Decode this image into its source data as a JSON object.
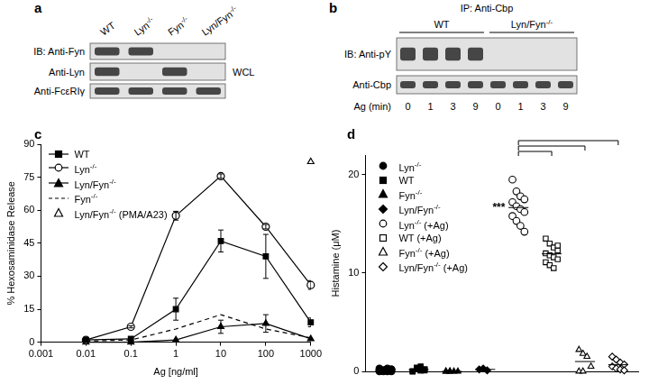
{
  "panel_a": {
    "label": "a",
    "columns": [
      "WT",
      "Lyn-/-",
      "Fyn-/-",
      "Lyn/Fyn-/-"
    ],
    "rows": [
      {
        "label": "IB: Anti-Fyn",
        "bands": [
          1,
          1,
          0,
          0
        ]
      },
      {
        "label": "Anti-Lyn",
        "bands": [
          1,
          0,
          1,
          0
        ]
      },
      {
        "label": "Anti-FcεRIγ",
        "bands": [
          1,
          1,
          1,
          1
        ]
      }
    ],
    "side_label": "WCL"
  },
  "panel_b": {
    "label": "b",
    "title": "IP: Anti-Cbp",
    "groups": [
      {
        "name": "WT",
        "lanes": [
          0,
          1,
          3,
          9
        ]
      },
      {
        "name": "Lyn/Fyn-/-",
        "lanes": [
          0,
          1,
          3,
          9
        ]
      }
    ],
    "lane_axis_label": "Ag (min)",
    "rows": [
      {
        "label": "IB: Anti-pY",
        "bands": [
          1,
          1,
          1,
          1,
          0,
          0,
          0,
          0
        ]
      },
      {
        "label": "Anti-Cbp",
        "bands": [
          1,
          1,
          1,
          1,
          1,
          1,
          1,
          1
        ]
      }
    ]
  },
  "chart_data": [
    {
      "label": "c",
      "type": "line",
      "x_label": "Ag [ng/ml]",
      "y_label": "% Hexosaminidase Release",
      "log": "x",
      "xlim": [
        0.001,
        1000
      ],
      "xticks": [
        0.001,
        0.01,
        0.1,
        1,
        10,
        100,
        1000
      ],
      "ylim": [
        0,
        90
      ],
      "yticks": [
        0,
        15,
        30,
        45,
        60,
        75,
        90
      ],
      "grid": false,
      "legend": "upper left",
      "series": [
        {
          "name": "WT",
          "color": "#000000",
          "marker": "square",
          "line_style": "solid",
          "x": [
            0.01,
            0.1,
            1,
            10,
            100,
            1000
          ],
          "values": [
            1,
            1.5,
            15,
            46,
            39,
            9
          ],
          "errors": [
            0,
            0.5,
            5,
            5,
            10,
            2
          ]
        },
        {
          "name": "Lyn-/-",
          "color": "#000000",
          "marker": "open_circle",
          "line_style": "solid",
          "x": [
            0.01,
            0.1,
            1,
            10,
            100,
            1000
          ],
          "values": [
            1,
            7,
            57.5,
            75.5,
            52.5,
            26
          ],
          "errors": [
            0,
            0.5,
            2,
            1,
            1,
            2
          ]
        },
        {
          "name": "Lyn/Fyn-/-",
          "color": "#000000",
          "marker": "triangle",
          "line_style": "solid",
          "x": [
            0.01,
            0.1,
            1,
            10,
            100,
            1000
          ],
          "values": [
            0,
            0,
            1,
            7,
            8.5,
            1.5
          ],
          "errors": [
            0,
            0,
            0,
            3,
            4,
            0
          ]
        },
        {
          "name": "Fyn-/-",
          "color": "#000000",
          "marker": "none",
          "line_style": "dashed",
          "x": [
            0.01,
            0.1,
            1,
            10,
            100,
            1000
          ],
          "values": [
            0.5,
            1,
            6,
            12.5,
            6,
            2
          ]
        },
        {
          "name": "Lyn/Fyn-/- (PMA/A23)",
          "color": "#000000",
          "marker": "open_triangle",
          "line_style": "none",
          "x": [
            1000
          ],
          "values": [
            82
          ]
        }
      ]
    },
    {
      "label": "d",
      "type": "scatter",
      "y_label": "Histamine (μM)",
      "ylim": [
        0,
        22
      ],
      "yticks": [
        0,
        10,
        20
      ],
      "grid": false,
      "legend": "upper left",
      "tick_labels": "y",
      "series": [
        {
          "name": "Lyn-/-",
          "color": "#000000",
          "marker": "circle",
          "values": [
            0,
            0.1,
            0.2,
            0,
            0.3,
            0.1,
            0,
            0.2,
            0.1,
            0,
            0.3,
            0.2
          ]
        },
        {
          "name": "WT",
          "color": "#000000",
          "marker": "square",
          "values": [
            0,
            0.2,
            0.5,
            0.1,
            0,
            0.3,
            0.1,
            0.2,
            0,
            0.4,
            0.1,
            0.2
          ]
        },
        {
          "name": "Fyn-/-",
          "color": "#000000",
          "marker": "triangle",
          "values": [
            0,
            0,
            0,
            0,
            0,
            0
          ]
        },
        {
          "name": "Lyn/Fyn-/-",
          "color": "#000000",
          "marker": "diamond",
          "values": [
            0.2,
            0.3,
            0.1
          ]
        },
        {
          "name": "Lyn-/- (+Ag)",
          "color": "#000000",
          "marker": "open_circle",
          "values": [
            19.5,
            18.3,
            17.8,
            17.5,
            17.2,
            16.8,
            16.5,
            16.2,
            15.8,
            15.3,
            14.8,
            14.2
          ]
        },
        {
          "name": "WT (+Ag)",
          "color": "#000000",
          "marker": "open_square",
          "values": [
            13.5,
            13.0,
            12.6,
            12.3,
            12.0,
            11.8,
            11.6,
            11.4,
            11.1,
            10.8,
            10.5,
            12.8
          ]
        },
        {
          "name": "Fyn-/- (+Ag)",
          "color": "#000000",
          "marker": "open_triangle",
          "values": [
            2.2,
            1.8,
            1.5,
            0.5,
            0,
            0
          ]
        },
        {
          "name": "Lyn/Fyn-/- (+Ag)",
          "color": "#000000",
          "marker": "open_diamond",
          "values": [
            1.5,
            1.2,
            0.9,
            0.7,
            0.5,
            0.3,
            0.2,
            0.1
          ]
        }
      ],
      "significance": {
        "label": "***",
        "pairs": [
          [
            4,
            5
          ],
          [
            4,
            6
          ],
          [
            4,
            7
          ]
        ]
      }
    }
  ]
}
